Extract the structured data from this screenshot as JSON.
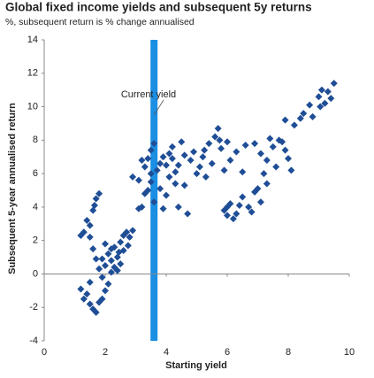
{
  "chart_data": {
    "type": "scatter",
    "title": "Global fixed income yields and subsequent 5y returns",
    "subtitle": "%, subsequent return is % change annualised",
    "x_label": "Starting yield",
    "y_label": "Subsequent 5-year annualised return",
    "annotation": "Current yield",
    "current_yield": 3.6,
    "color": "#1f4e96",
    "band_color": "#1a8fe3",
    "xlim": [
      0,
      10
    ],
    "xticks": [
      0,
      2,
      4,
      6,
      8,
      10
    ],
    "ylim": [
      -4,
      14
    ],
    "yticks": [
      -4,
      -2,
      0,
      2,
      4,
      6,
      8,
      10,
      12,
      14
    ],
    "x": [
      1.2,
      1.3,
      1.4,
      1.5,
      1.6,
      1.7,
      1.5,
      1.3,
      1.4,
      1.5,
      1.6,
      1.7,
      1.8,
      1.2,
      1.6,
      1.7,
      1.8,
      1.9,
      1.9,
      2.0,
      1.8,
      1.5,
      1.65,
      2.0,
      2.1,
      2.2,
      2.3,
      2.4,
      2.5,
      2.6,
      2.7,
      2.8,
      2.1,
      2.2,
      2.4,
      2.5,
      2.6,
      2.3,
      2.0,
      2.9,
      2.2,
      1.9,
      2.45,
      2.75,
      2.9,
      3.1,
      3.2,
      3.3,
      3.4,
      3.5,
      3.5,
      3.6,
      3.7,
      3.8,
      3.9,
      4.0,
      4.1,
      4.2,
      4.3,
      4.4,
      4.5,
      4.6,
      4.7,
      4.8,
      3.3,
      3.6,
      3.8,
      4.0,
      4.1,
      4.3,
      4.9,
      5.0,
      3.2,
      3.4,
      3.9,
      4.2,
      4.6,
      3.1,
      3.5,
      4.4,
      5.1,
      5.2,
      5.3,
      5.4,
      5.5,
      5.6,
      5.7,
      5.8,
      5.9,
      6.0,
      6.1,
      6.3,
      6.5,
      6.6,
      5.25,
      5.75,
      5.9,
      6.0,
      6.1,
      6.3,
      6.5,
      6.7,
      6.9,
      7.1,
      7.3,
      6.2,
      6.8,
      7.0,
      6.4,
      6.0,
      6.9,
      7.1,
      7.3,
      7.5,
      7.7,
      7.9,
      8.0,
      7.6,
      7.2,
      8.1,
      7.8,
      7.4,
      7.9,
      8.2,
      8.5,
      8.7,
      8.8,
      9.0,
      9.1,
      9.2,
      9.3,
      9.5,
      8.4,
      9.05,
      9.4
    ],
    "values": [
      -0.9,
      -1.5,
      -1.2,
      -1.8,
      -2.1,
      -2.3,
      -0.5,
      2.5,
      3.2,
      2.2,
      3.8,
      4.5,
      4.8,
      2.3,
      1.5,
      0.9,
      0.3,
      -0.2,
      -1.5,
      -1.0,
      -1.7,
      2.9,
      4.1,
      0.5,
      1.2,
      0.8,
      1.6,
      0.2,
      1.9,
      2.3,
      2.5,
      2.2,
      -0.6,
      0.1,
      1.0,
      0.6,
      1.4,
      0.4,
      1.8,
      2.6,
      1.5,
      0.9,
      1.3,
      1.7,
      5.8,
      5.6,
      4.0,
      6.4,
      6.9,
      7.4,
      5.5,
      4.3,
      6.2,
      5.1,
      7.0,
      6.5,
      5.8,
      7.6,
      6.1,
      4.0,
      7.9,
      5.3,
      3.6,
      6.8,
      4.8,
      7.8,
      6.6,
      4.7,
      7.2,
      5.4,
      7.3,
      6.0,
      6.8,
      5.0,
      3.9,
      6.9,
      7.1,
      3.9,
      6.0,
      6.5,
      6.4,
      7.0,
      5.8,
      7.8,
      6.6,
      8.2,
      8.7,
      7.5,
      6.2,
      7.9,
      6.8,
      7.3,
      6.1,
      7.7,
      7.4,
      8.0,
      3.8,
      3.5,
      4.2,
      3.6,
      4.6,
      4.0,
      4.9,
      4.3,
      5.4,
      3.3,
      3.7,
      5.1,
      4.1,
      4.0,
      7.8,
      7.2,
      6.8,
      7.6,
      8.0,
      7.4,
      6.9,
      6.4,
      6.0,
      6.2,
      7.9,
      8.1,
      9.2,
      8.9,
      9.6,
      10.1,
      9.4,
      10.6,
      11.0,
      10.2,
      10.9,
      11.4,
      9.3,
      10.0,
      10.5
    ]
  }
}
